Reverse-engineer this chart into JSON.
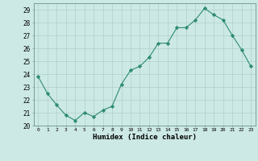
{
  "x": [
    0,
    1,
    2,
    3,
    4,
    5,
    6,
    7,
    8,
    9,
    10,
    11,
    12,
    13,
    14,
    15,
    16,
    17,
    18,
    19,
    20,
    21,
    22,
    23
  ],
  "y": [
    23.8,
    22.5,
    21.6,
    20.8,
    20.4,
    21.0,
    20.7,
    21.2,
    21.5,
    23.2,
    24.3,
    24.6,
    25.3,
    26.4,
    26.4,
    27.6,
    27.6,
    28.2,
    29.1,
    28.6,
    28.2,
    27.0,
    25.9,
    24.6
  ],
  "xlim": [
    -0.5,
    23.5
  ],
  "ylim": [
    20,
    29.5
  ],
  "yticks": [
    20,
    21,
    22,
    23,
    24,
    25,
    26,
    27,
    28,
    29
  ],
  "xticks": [
    0,
    1,
    2,
    3,
    4,
    5,
    6,
    7,
    8,
    9,
    10,
    11,
    12,
    13,
    14,
    15,
    16,
    17,
    18,
    19,
    20,
    21,
    22,
    23
  ],
  "xlabel": "Humidex (Indice chaleur)",
  "line_color": "#2e8b72",
  "marker": "D",
  "marker_size": 2.2,
  "bg_color": "#cce9e5",
  "grid_color": "#b0cfcc",
  "spine_color": "#7a9e9b"
}
